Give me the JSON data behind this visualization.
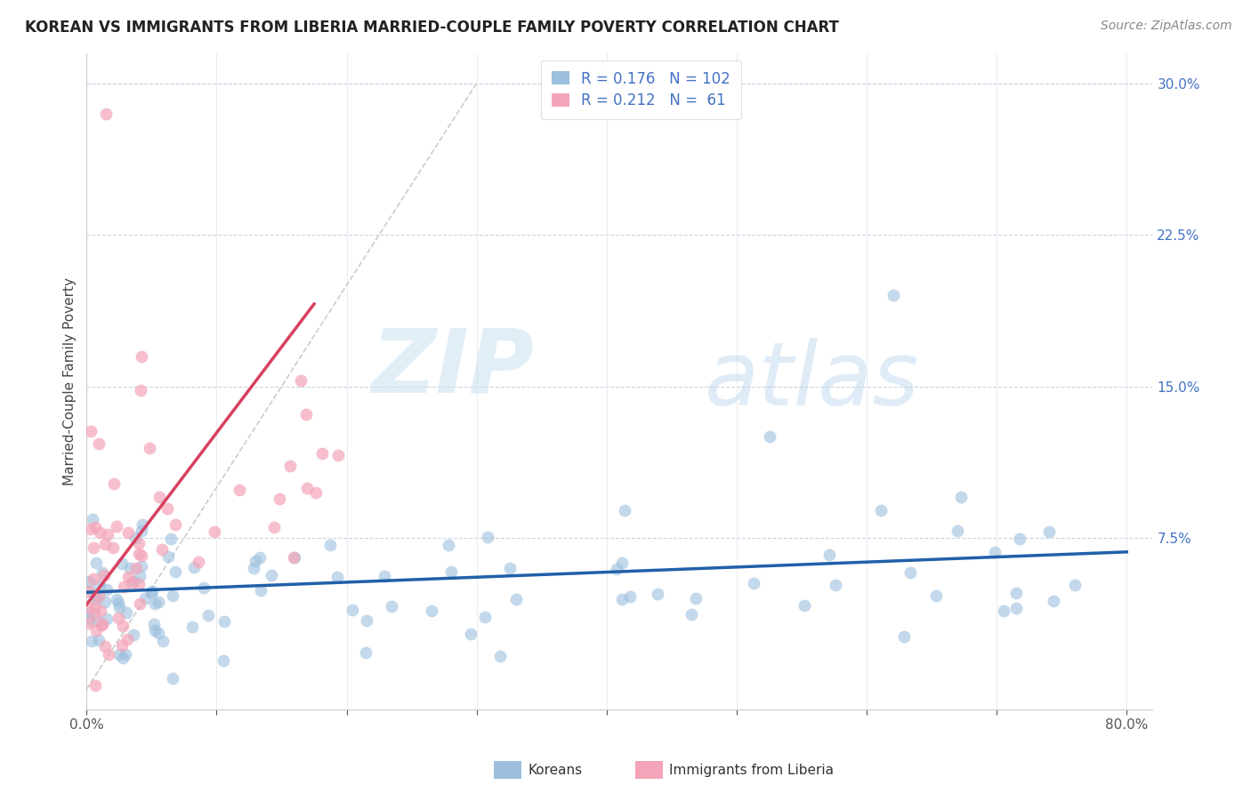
{
  "title": "KOREAN VS IMMIGRANTS FROM LIBERIA MARRIED-COUPLE FAMILY POVERTY CORRELATION CHART",
  "source": "Source: ZipAtlas.com",
  "ylabel": "Married-Couple Family Poverty",
  "xlim": [
    0.0,
    0.82
  ],
  "ylim": [
    -0.01,
    0.315
  ],
  "yticks_right": [
    0.075,
    0.15,
    0.225,
    0.3
  ],
  "yticklabels_right": [
    "7.5%",
    "15.0%",
    "22.5%",
    "30.0%"
  ],
  "legend_labels": [
    "Koreans",
    "Immigrants from Liberia"
  ],
  "korean_color": "#9bbfdd",
  "liberia_color": "#f4a4b8",
  "korean_line_color": "#2060a8",
  "liberia_line_color": "#d84060",
  "diagonal_color": "#cccccc",
  "watermark_zip": "ZIP",
  "watermark_atlas": "atlas",
  "R_korean": 0.176,
  "N_korean": 102,
  "R_liberia": 0.212,
  "N_liberia": 61
}
